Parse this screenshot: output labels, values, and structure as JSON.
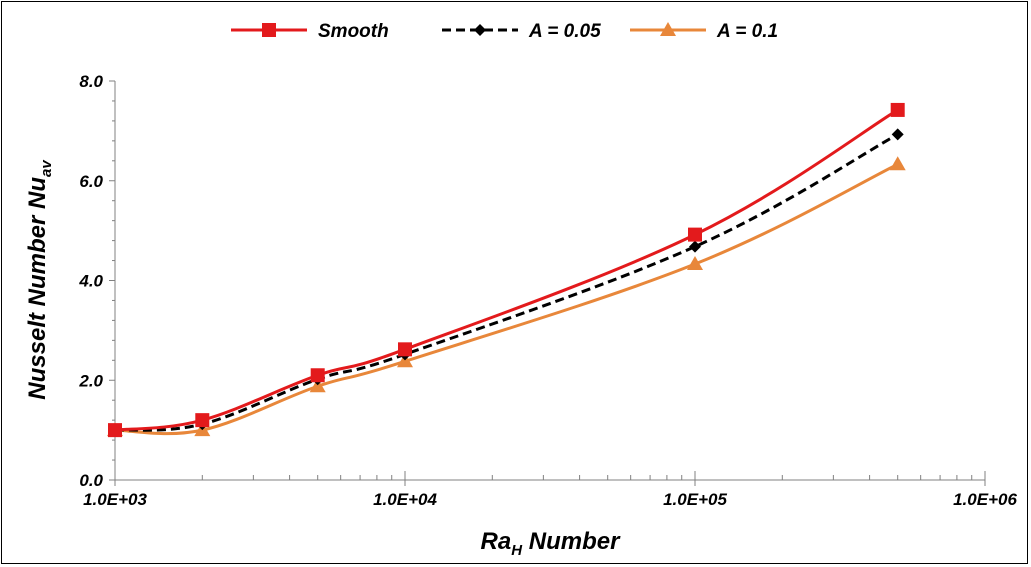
{
  "chart_data": {
    "type": "line",
    "xscale": "log",
    "xlim": [
      1000,
      1000000
    ],
    "ylim": [
      0,
      8
    ],
    "grid": false,
    "legend_position": "top",
    "xlabel": "Ra",
    "xlabel_sub": "H",
    "xlabel_suffix": " Number",
    "ylabel": "Nusselt Number Nu",
    "ylabel_sub": "av",
    "x_tick_labels": [
      "1.0E+03",
      "1.0E+04",
      "1.0E+05",
      "1.0E+06"
    ],
    "x_tick_values": [
      1000,
      10000,
      100000,
      1000000
    ],
    "y_tick_labels": [
      "0.0",
      "2.0",
      "4.0",
      "6.0",
      "8.0"
    ],
    "y_tick_values": [
      0,
      2,
      4,
      6,
      8
    ],
    "x": [
      1000,
      2000,
      5000,
      10000,
      100000,
      500000
    ],
    "series": [
      {
        "name": "Smooth",
        "color": "#e31a1c",
        "marker": "square",
        "dash": "solid",
        "values": [
          1.0,
          1.2,
          2.1,
          2.62,
          4.92,
          7.42
        ]
      },
      {
        "name": "A = 0.05",
        "color": "#000000",
        "marker": "diamond",
        "dash": "dashed",
        "values": [
          1.0,
          1.12,
          2.02,
          2.52,
          4.68,
          6.93
        ]
      },
      {
        "name": "A = 0.1",
        "color": "#e8873a",
        "marker": "triangle",
        "dash": "solid",
        "values": [
          1.0,
          1.0,
          1.88,
          2.38,
          4.33,
          6.33
        ]
      }
    ]
  }
}
